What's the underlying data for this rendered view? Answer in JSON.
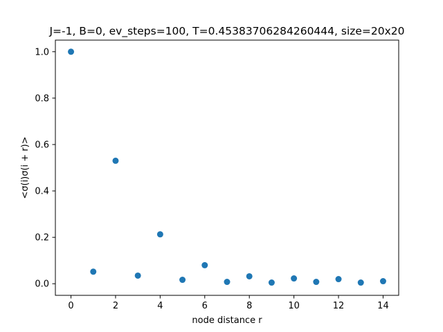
{
  "chart_data": {
    "type": "scatter",
    "title": "J=-1, B=0, ev_steps=100, T=0.45383706284260444, size=20x20",
    "xlabel": "node distance r",
    "ylabel": "<σ(i)σ(i + r)>",
    "xlim": [
      -0.7,
      14.7
    ],
    "ylim": [
      -0.05,
      1.05
    ],
    "x_ticks": [
      0,
      2,
      4,
      6,
      8,
      10,
      12,
      14
    ],
    "x_tick_labels": [
      "0",
      "2",
      "4",
      "6",
      "8",
      "10",
      "12",
      "14"
    ],
    "y_ticks": [
      0.0,
      0.2,
      0.4,
      0.6,
      0.8,
      1.0
    ],
    "y_tick_labels": [
      "0.0",
      "0.2",
      "0.4",
      "0.6",
      "0.8",
      "1.0"
    ],
    "grid": false,
    "legend": "none",
    "series": [
      {
        "color": "#1f77b4",
        "x": [
          0,
          1,
          2,
          3,
          4,
          5,
          6,
          7,
          8,
          9,
          10,
          11,
          12,
          13,
          14
        ],
        "y": [
          1.0,
          0.052,
          0.53,
          0.035,
          0.213,
          0.017,
          0.08,
          0.008,
          0.032,
          0.005,
          0.023,
          0.008,
          0.02,
          0.005,
          0.011
        ]
      }
    ]
  }
}
